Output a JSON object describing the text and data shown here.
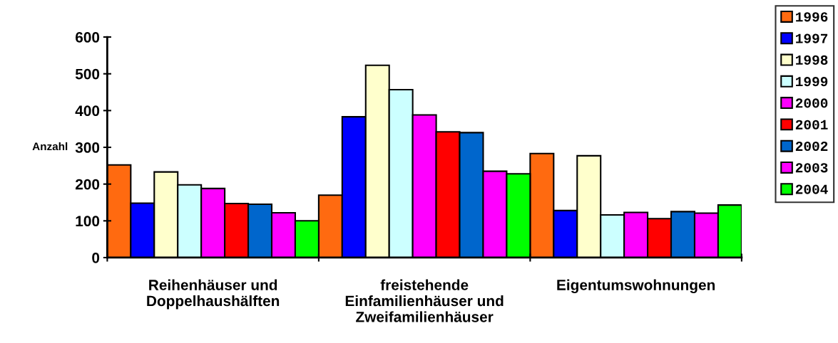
{
  "chart_data": {
    "type": "bar",
    "ylabel": "Anzahl",
    "categories": [
      "Reihenhäuser und\nDoppelhaushälften",
      "freistehende\nEinfamilienhäuser und\nZweifamilienhäuser",
      "Eigentumswohnungen"
    ],
    "series": [
      {
        "name": "1996",
        "color": "#ff6a10",
        "values": [
          252,
          170,
          283
        ]
      },
      {
        "name": "1997",
        "color": "#0000ff",
        "values": [
          148,
          383,
          128
        ]
      },
      {
        "name": "1998",
        "color": "#ffffcc",
        "values": [
          233,
          523,
          277
        ]
      },
      {
        "name": "1999",
        "color": "#ccffff",
        "values": [
          198,
          457,
          116
        ]
      },
      {
        "name": "2000",
        "color": "#ff00ff",
        "values": [
          188,
          388,
          123
        ]
      },
      {
        "name": "2001",
        "color": "#ff0000",
        "values": [
          147,
          342,
          106
        ]
      },
      {
        "name": "2002",
        "color": "#0066cc",
        "values": [
          145,
          340,
          125
        ]
      },
      {
        "name": "2003",
        "color": "#ff00ff",
        "values": [
          122,
          235,
          121
        ]
      },
      {
        "name": "2004",
        "color": "#00ff00",
        "values": [
          100,
          228,
          143
        ]
      }
    ],
    "ylim": [
      0,
      600
    ],
    "yticks": [
      0,
      100,
      200,
      300,
      400,
      500,
      600
    ],
    "grid": false,
    "legend": "right"
  }
}
